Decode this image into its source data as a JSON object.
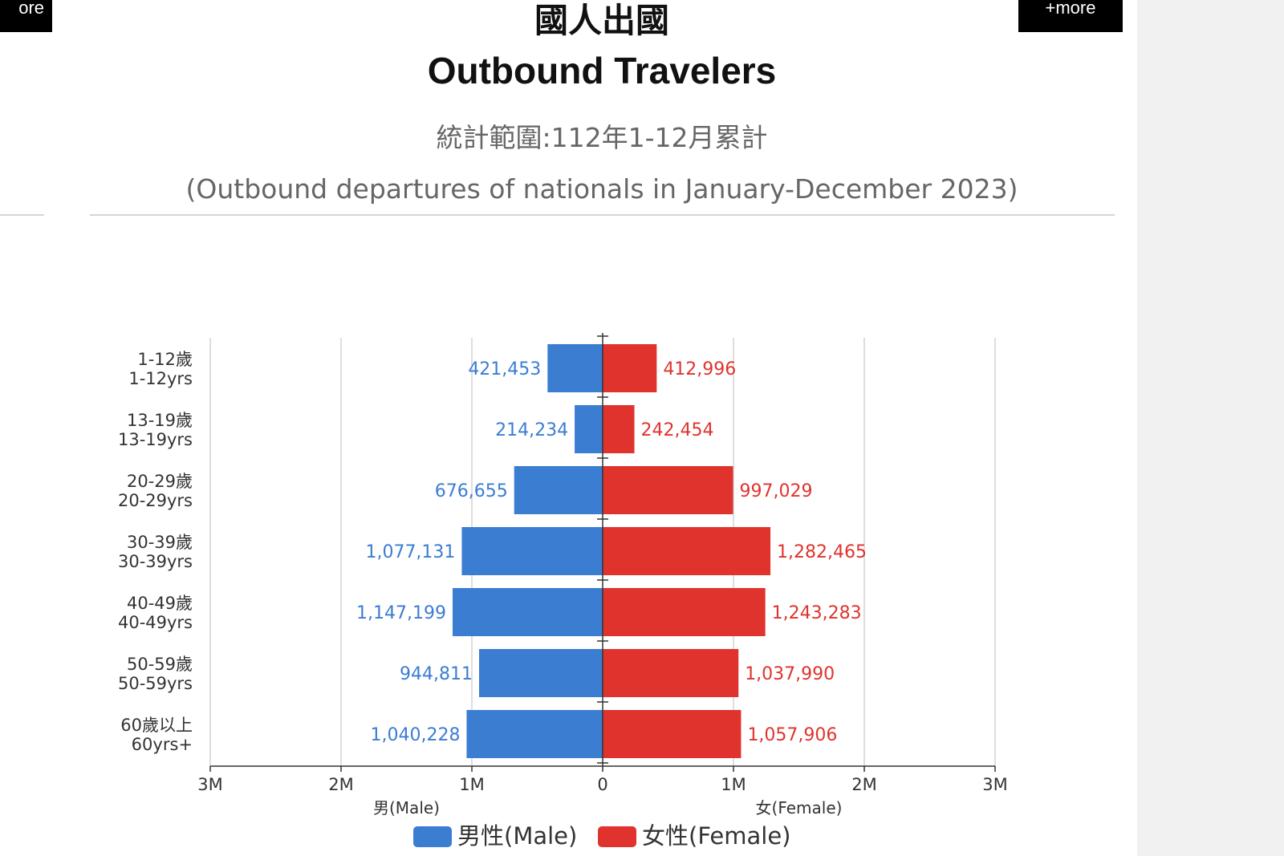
{
  "buttons": {
    "more_left": "ore",
    "more_right": "+more"
  },
  "header": {
    "title_zh": "國人出國",
    "title_en": "Outbound Travelers",
    "subtitle_zh": "統計範圍:112年1-12月累計",
    "subtitle_en": "(Outbound departures of nationals in January-December 2023)"
  },
  "colors": {
    "male": "#3b7dd1",
    "female": "#e0332e"
  },
  "chart_data": {
    "type": "bar",
    "orientation": "horizontal-diverging",
    "categories": [
      {
        "zh": "1-12歲",
        "en": "1-12yrs"
      },
      {
        "zh": "13-19歲",
        "en": "13-19yrs"
      },
      {
        "zh": "20-29歲",
        "en": "20-29yrs"
      },
      {
        "zh": "30-39歲",
        "en": "30-39yrs"
      },
      {
        "zh": "40-49歲",
        "en": "40-49yrs"
      },
      {
        "zh": "50-59歲",
        "en": "50-59yrs"
      },
      {
        "zh": "60歲以上",
        "en": "60yrs+"
      }
    ],
    "series": [
      {
        "name": "男性(Male)",
        "side": "left",
        "values": [
          421453,
          214234,
          676655,
          1077131,
          1147199,
          944811,
          1040228
        ],
        "labels": [
          "421,453",
          "214,234",
          "676,655",
          "1,077,131",
          "1,147,199",
          "944,811",
          "1,040,228"
        ]
      },
      {
        "name": "女性(Female)",
        "side": "right",
        "values": [
          412996,
          242454,
          997029,
          1282465,
          1243283,
          1037990,
          1057906
        ],
        "labels": [
          "412,996",
          "242,454",
          "997,029",
          "1,282,465",
          "1,243,283",
          "1,037,990",
          "1,057,906"
        ]
      }
    ],
    "xlim": [
      -3000000,
      3000000
    ],
    "x_ticks": [
      {
        "value": -3000000,
        "label": "3M"
      },
      {
        "value": -2000000,
        "label": "2M"
      },
      {
        "value": -1000000,
        "label": "1M"
      },
      {
        "value": 0,
        "label": "0"
      },
      {
        "value": 1000000,
        "label": "1M"
      },
      {
        "value": 2000000,
        "label": "2M"
      },
      {
        "value": 3000000,
        "label": "3M"
      }
    ],
    "xlabel_left": "男(Male)",
    "xlabel_right": "女(Female)",
    "grid": true,
    "legend_position": "bottom-center"
  }
}
